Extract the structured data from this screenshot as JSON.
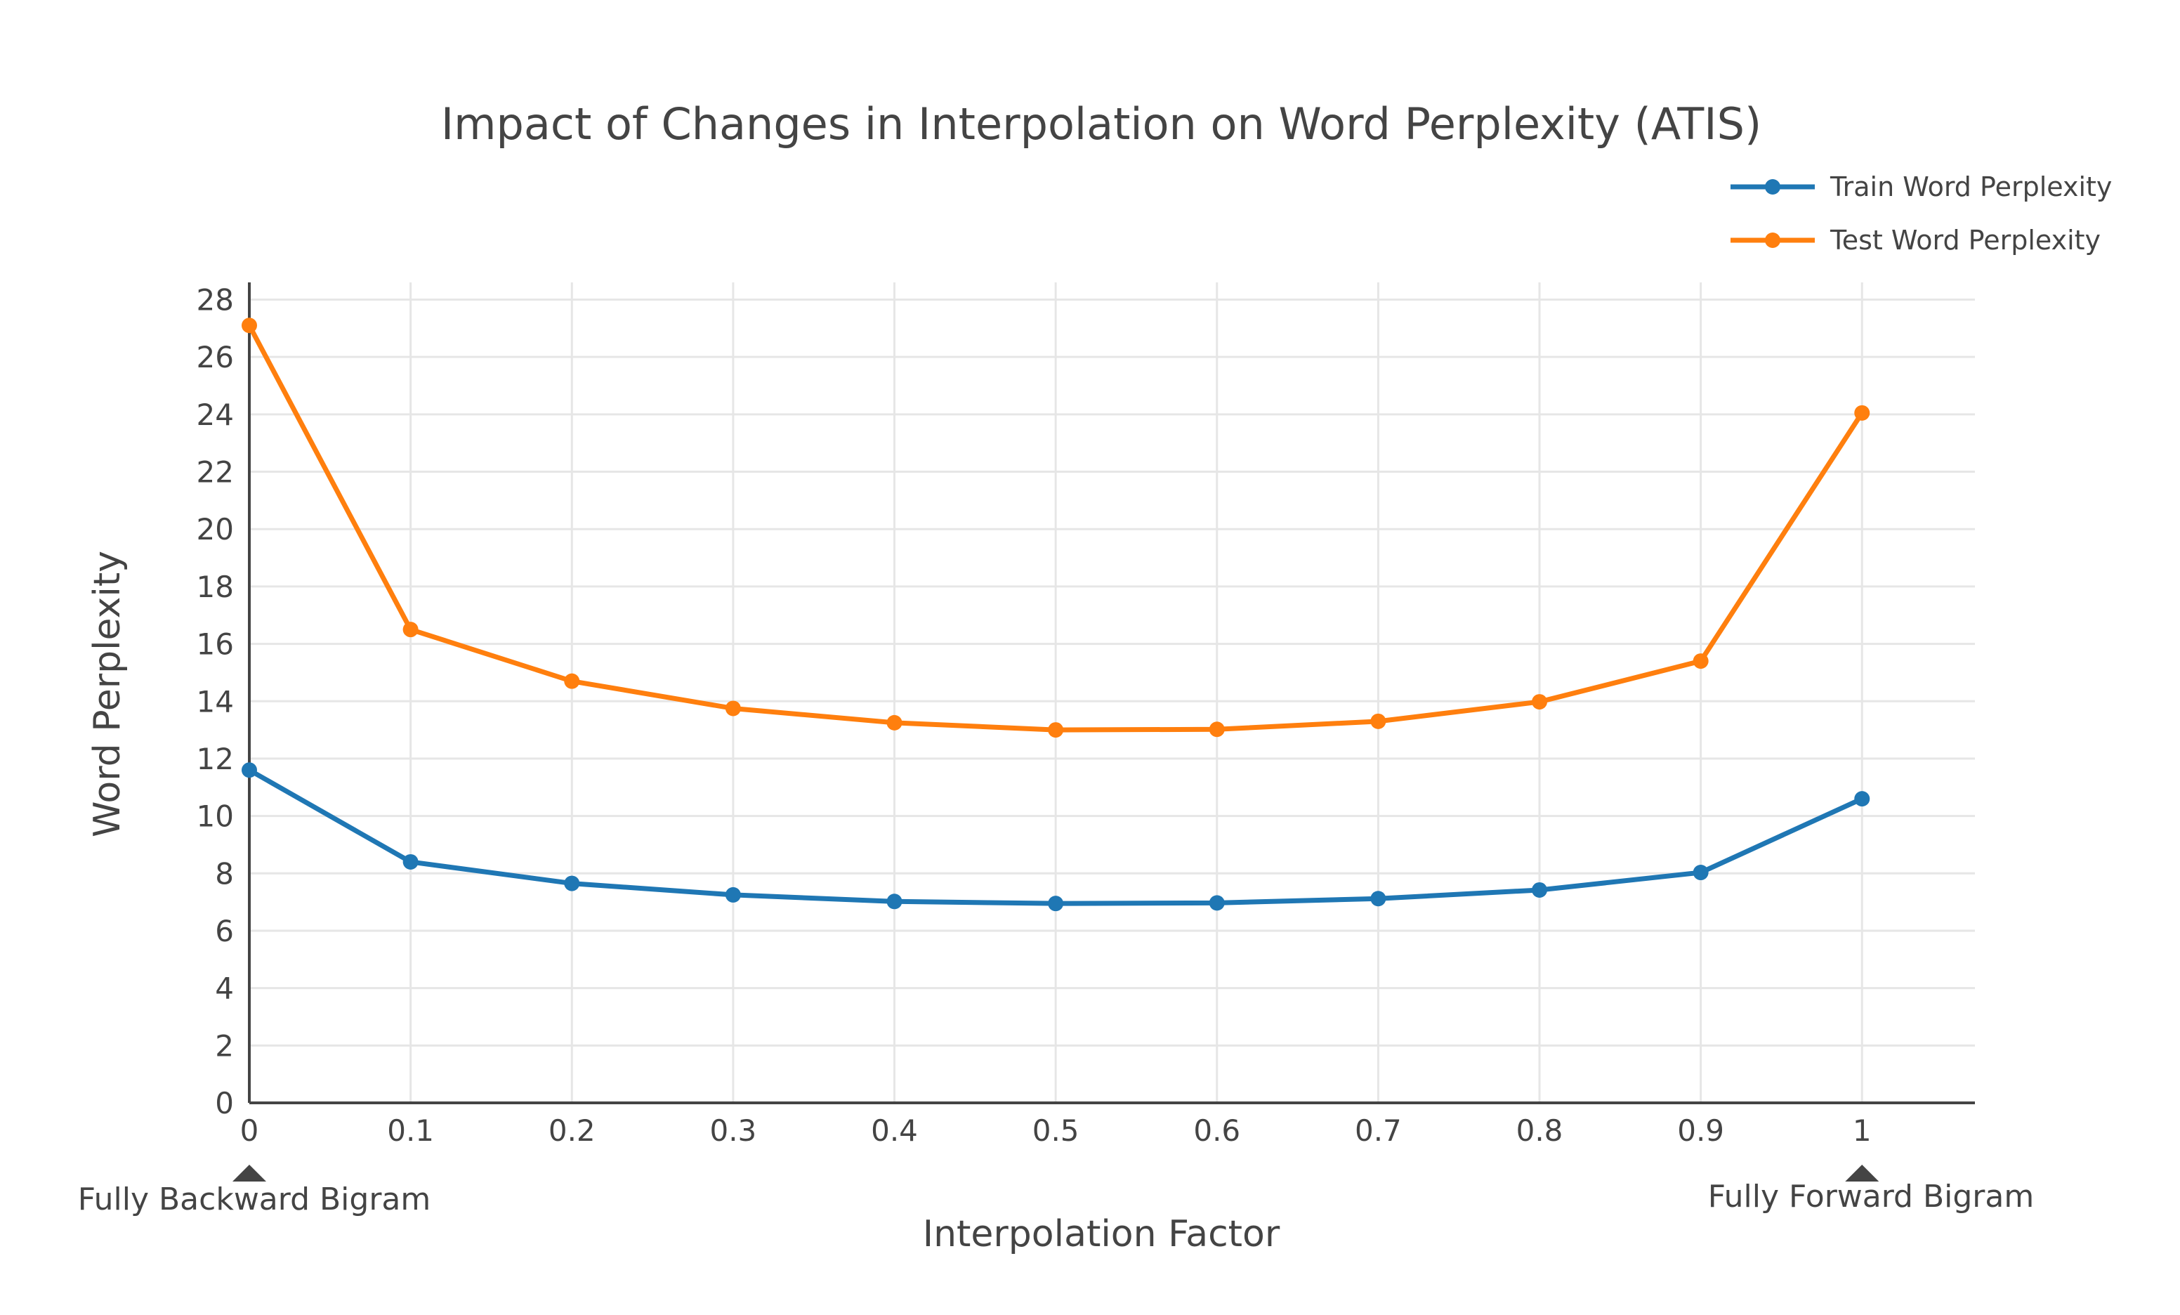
{
  "chart_data": {
    "type": "line",
    "title": "Impact of Changes in Interpolation on Word Perplexity (ATIS)",
    "xlabel": "Interpolation Factor",
    "ylabel": "Word Perplexity",
    "x": [
      0,
      0.1,
      0.2,
      0.3,
      0.4,
      0.5,
      0.6,
      0.7,
      0.8,
      0.9,
      1
    ],
    "x_tick_labels": [
      "0",
      "0.1",
      "0.2",
      "0.3",
      "0.4",
      "0.5",
      "0.6",
      "0.7",
      "0.8",
      "0.9",
      "1"
    ],
    "y_ticks": [
      0,
      2,
      4,
      6,
      8,
      10,
      12,
      14,
      16,
      18,
      20,
      22,
      24,
      26,
      28
    ],
    "xlim": [
      0,
      1.07
    ],
    "ylim": [
      0,
      28.6
    ],
    "grid": true,
    "legend_position": "top-right",
    "series": [
      {
        "name": "Train Word Perplexity",
        "color": "#1f77b4",
        "values": [
          11.6,
          8.4,
          7.65,
          7.25,
          7.02,
          6.95,
          6.97,
          7.12,
          7.42,
          8.03,
          10.6
        ]
      },
      {
        "name": "Test Word Perplexity",
        "color": "#ff7f0e",
        "values": [
          27.1,
          16.5,
          14.7,
          13.75,
          13.25,
          13.0,
          13.02,
          13.3,
          13.98,
          15.4,
          24.05
        ]
      }
    ],
    "annotations": [
      {
        "text": "Fully Backward Bigram",
        "x": 0
      },
      {
        "text": "Fully Forward Bigram",
        "x": 1
      }
    ]
  }
}
